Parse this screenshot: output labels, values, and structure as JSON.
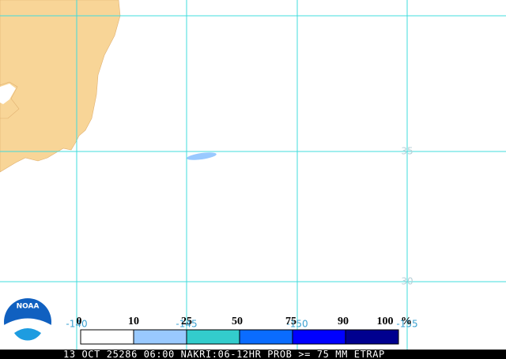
{
  "map": {
    "lat_labels": [
      "35",
      "30"
    ],
    "lon_labels": [
      "-140",
      "-145",
      "-150",
      "-155"
    ],
    "logo": "NOAA"
  },
  "legend": {
    "labels": [
      "0",
      "10",
      "25",
      "50",
      "75",
      "90",
      "100"
    ],
    "unit": "%",
    "colors": [
      "#ffffff",
      "#99c9ff",
      "#33cccc",
      "#0a6cff",
      "#0000ff",
      "#00008f"
    ]
  },
  "caption": "13 OCT 25286 06:00 NAKRI:06-12HR PROB >= 75 MM ETRAP"
}
